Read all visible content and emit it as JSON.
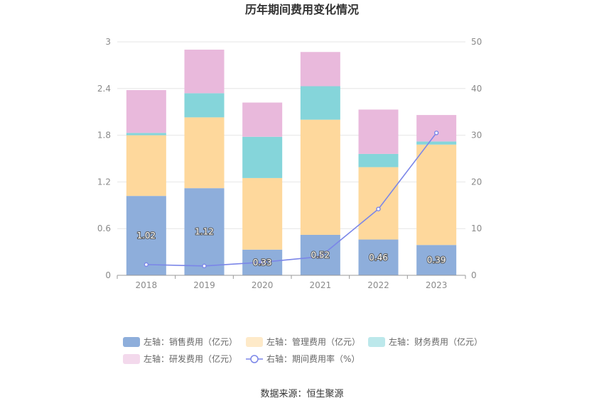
{
  "chart_data": {
    "type": "bar",
    "title": "历年期间费用变化情况",
    "categories": [
      "2018",
      "2019",
      "2020",
      "2021",
      "2022",
      "2023"
    ],
    "left_axis": {
      "ticks": [
        "0",
        "0.6",
        "1.2",
        "1.8",
        "2.4",
        "3"
      ],
      "ylim": [
        0,
        3
      ]
    },
    "right_axis": {
      "ticks": [
        "0",
        "10",
        "20",
        "30",
        "40",
        "50"
      ],
      "ylim": [
        0,
        50
      ]
    },
    "stacked": true,
    "series": [
      {
        "name": "左轴：销售费用（亿元）",
        "type": "bar",
        "axis": "left",
        "color": "#8eaedb",
        "values": [
          1.02,
          1.12,
          0.33,
          0.52,
          0.46,
          0.39
        ],
        "labels": [
          "1.02",
          "1.12",
          "0.33",
          "0.52",
          "0.46",
          "0.39"
        ]
      },
      {
        "name": "左轴：管理费用（亿元）",
        "type": "bar",
        "axis": "left",
        "color": "#fed89c",
        "values": [
          0.78,
          0.91,
          0.92,
          1.48,
          0.93,
          1.29
        ]
      },
      {
        "name": "左轴：财务费用（亿元）",
        "type": "bar",
        "axis": "left",
        "color": "#85d5da",
        "values": [
          0.03,
          0.31,
          0.53,
          0.43,
          0.17,
          0.04
        ]
      },
      {
        "name": "左轴：研发费用（亿元）",
        "type": "bar",
        "axis": "left",
        "color": "#e9b9dc",
        "values": [
          0.55,
          0.56,
          0.44,
          0.44,
          0.57,
          0.34
        ]
      },
      {
        "name": "右轴：期间费用率（%）",
        "type": "line",
        "axis": "right",
        "color": "#7b86e8",
        "values": [
          2.3,
          2.0,
          2.8,
          4.0,
          14.2,
          30.5
        ]
      }
    ],
    "legend_position": "bottom",
    "grid": true
  },
  "source": "数据来源：恒生聚源"
}
